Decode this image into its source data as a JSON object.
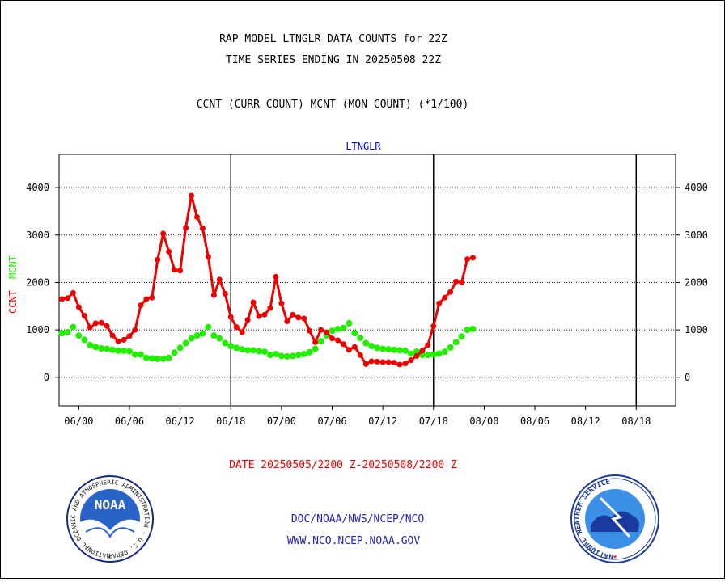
{
  "header": {
    "title_line1": "RAP MODEL LTNGLR DATA COUNTS for 22Z",
    "title_line2": "TIME SERIES ENDING IN 20250508 22Z",
    "subtitle": "CCNT (CURR COUNT) MCNT (MON COUNT) (*1/100)"
  },
  "footer": {
    "date_range": "DATE 20250505/2200 Z-20250508/2200 Z",
    "org_line": "DOC/NOAA/NWS/NCEP/NCO",
    "url_line": "WWW.NCO.NCEP.NOAA.GOV",
    "noaa_logo_text": "NOAA",
    "noaa_ring_text": "NATIONAL OCEANIC AND ATMOSPHERIC ADMINISTRATION · U.S. DEPARTMENT OF COMMERCE ·",
    "nws_ring_text": "NATIONAL WEATHER SERVICE"
  },
  "colors": {
    "ccnt": "#ee0000",
    "mcnt": "#22ee00",
    "title": "#000000",
    "panel_title": "#0000cc",
    "date": "#ee0000",
    "footer_text": "#2222bb"
  },
  "chart_data": {
    "type": "line",
    "panel_title": "LTNGLR",
    "ylabel_ccnt": "CCNT",
    "ylabel_mcnt": "MCNT",
    "ylim": [
      -600,
      4700
    ],
    "yticks": [
      0,
      1000,
      2000,
      3000,
      4000
    ],
    "ytick_labels": [
      "0",
      "1000",
      "2000",
      "3000",
      "4000"
    ],
    "xlim": [
      -3.5,
      106
    ],
    "xticks": [
      0,
      9,
      18,
      27,
      36,
      45,
      54,
      63,
      72,
      81,
      90,
      99
    ],
    "xtick_labels": [
      "06/00",
      "06/06",
      "06/12",
      "06/18",
      "07/00",
      "07/06",
      "07/12",
      "07/18",
      "08/00",
      "08/06",
      "08/12",
      "08/18"
    ],
    "day_separators": [
      27,
      63,
      99
    ],
    "gridlines": "horizontal dotted at y ticks",
    "series": [
      {
        "name": "CCNT",
        "x_start": -3,
        "values": [
          1650,
          1670,
          1780,
          1480,
          1300,
          1050,
          1140,
          1150,
          1080,
          880,
          760,
          790,
          870,
          1000,
          1520,
          1650,
          1680,
          2480,
          3030,
          2650,
          2270,
          2250,
          3150,
          3830,
          3380,
          3140,
          2540,
          1730,
          2060,
          1760,
          1270,
          1060,
          950,
          1210,
          1580,
          1290,
          1320,
          1460,
          2120,
          1560,
          1180,
          1320,
          1260,
          1240,
          980,
          740,
          1000,
          950,
          820,
          780,
          700,
          580,
          640,
          470,
          280,
          340,
          330,
          320,
          320,
          310,
          270,
          290,
          360,
          450,
          560,
          680,
          1080,
          1560,
          1680,
          1800,
          2020,
          2000,
          2490,
          2520
        ]
      },
      {
        "name": "MCNT",
        "x_start": -3,
        "values": [
          930,
          950,
          1060,
          880,
          790,
          680,
          640,
          610,
          600,
          580,
          560,
          560,
          550,
          480,
          480,
          410,
          400,
          390,
          390,
          410,
          520,
          620,
          720,
          820,
          880,
          920,
          1060,
          880,
          820,
          720,
          660,
          620,
          590,
          570,
          570,
          550,
          540,
          470,
          490,
          450,
          440,
          450,
          470,
          490,
          530,
          600,
          760,
          880,
          980,
          1020,
          1040,
          1140,
          930,
          830,
          720,
          660,
          620,
          600,
          590,
          580,
          570,
          560,
          500,
          540,
          470,
          470,
          480,
          500,
          540,
          630,
          740,
          860,
          1000,
          1020
        ]
      }
    ]
  }
}
